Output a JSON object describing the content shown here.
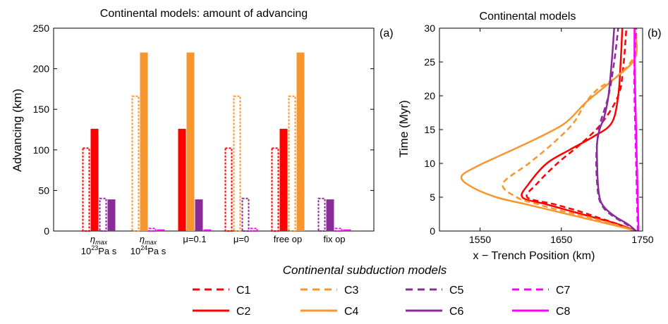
{
  "colors": {
    "C1": "#ff0000",
    "C2": "#ff0000",
    "C3": "#f7962e",
    "C4": "#f7962e",
    "C5": "#8b2b9a",
    "C6": "#8b2b9a",
    "C7": "#ff00ff",
    "C8": "#ff00ff"
  },
  "panel_a": {
    "panel_label": "(a)",
    "chart_data": {
      "type": "bar",
      "title": "Continental models: amount of advancing",
      "ylabel": "Advancing (km)",
      "xlabel": "",
      "ylim": [
        0,
        250
      ],
      "yticks": [
        0,
        50,
        100,
        150,
        200,
        250
      ],
      "groups": [
        {
          "label_lines": [
            {
              "main": "η",
              "sub": "max"
            },
            {
              "main": "10",
              "sup": "23",
              "rest": "Pa s"
            }
          ]
        },
        {
          "label_lines": [
            {
              "main": "η",
              "sub": "max"
            },
            {
              "main": "10",
              "sup": "24",
              "rest": "Pa s"
            }
          ]
        },
        {
          "label_lines": [
            {
              "main": "μ=0.1"
            }
          ]
        },
        {
          "label_lines": [
            {
              "main": "μ=0"
            }
          ]
        },
        {
          "label_lines": [
            {
              "main": "free op"
            }
          ]
        },
        {
          "label_lines": [
            {
              "main": "fix op"
            }
          ]
        }
      ],
      "series": [
        {
          "name": "C1",
          "style": "dashed",
          "values": [
            103,
            null,
            null,
            103,
            103,
            null
          ]
        },
        {
          "name": "C2",
          "style": "solid",
          "values": [
            126,
            null,
            126,
            null,
            126,
            null
          ]
        },
        {
          "name": "C3",
          "style": "dashed",
          "values": [
            null,
            167,
            null,
            167,
            167,
            null
          ]
        },
        {
          "name": "C4",
          "style": "solid",
          "values": [
            null,
            220,
            220,
            null,
            220,
            null
          ]
        },
        {
          "name": "C5",
          "style": "dashed",
          "values": [
            41,
            null,
            null,
            41,
            null,
            41
          ]
        },
        {
          "name": "C6",
          "style": "solid",
          "values": [
            39,
            null,
            39,
            null,
            null,
            39
          ]
        },
        {
          "name": "C7",
          "style": "dashed",
          "values": [
            null,
            4,
            null,
            4,
            null,
            4
          ]
        },
        {
          "name": "C8",
          "style": "solid",
          "values": [
            null,
            2,
            2,
            null,
            null,
            2
          ]
        }
      ]
    }
  },
  "panel_b": {
    "panel_label": "(b)",
    "chart_data": {
      "type": "line",
      "title": "Continental models",
      "xlabel": "x − Trench Position (km)",
      "ylabel": "Time (Myr)",
      "xlim": [
        1500,
        1750
      ],
      "ylim": [
        0,
        30
      ],
      "xticks": [
        1550,
        1650,
        1750
      ],
      "yticks": [
        0,
        5,
        10,
        15,
        20,
        25,
        30
      ],
      "series": [
        {
          "name": "C1",
          "style": "dashed",
          "points": [
            [
              1740,
              0
            ],
            [
              1720,
              1
            ],
            [
              1695,
              2
            ],
            [
              1670,
              3
            ],
            [
              1640,
              4
            ],
            [
              1608,
              5
            ],
            [
              1620,
              7
            ],
            [
              1645,
              10
            ],
            [
              1675,
              13
            ],
            [
              1700,
              16
            ],
            [
              1720,
              20
            ],
            [
              1726,
              24
            ],
            [
              1730,
              30
            ]
          ]
        },
        {
          "name": "C2",
          "style": "solid",
          "points": [
            [
              1742,
              0
            ],
            [
              1720,
              1
            ],
            [
              1690,
              2
            ],
            [
              1660,
              3
            ],
            [
              1630,
              4
            ],
            [
              1602,
              5
            ],
            [
              1610,
              7
            ],
            [
              1632,
              10
            ],
            [
              1660,
              12
            ],
            [
              1690,
              14
            ],
            [
              1712,
              16
            ],
            [
              1720,
              20
            ],
            [
              1723,
              25
            ],
            [
              1725,
              30
            ]
          ]
        },
        {
          "name": "C3",
          "style": "dashed",
          "points": [
            [
              1742,
              0
            ],
            [
              1715,
              1
            ],
            [
              1685,
              2
            ],
            [
              1650,
              3
            ],
            [
              1620,
              4
            ],
            [
              1595,
              5
            ],
            [
              1578,
              7
            ],
            [
              1610,
              10
            ],
            [
              1640,
              13
            ],
            [
              1665,
              16
            ],
            [
              1680,
              19
            ],
            [
              1695,
              21
            ],
            [
              1720,
              23
            ],
            [
              1740,
              26
            ],
            [
              1742,
              30
            ]
          ]
        },
        {
          "name": "C4",
          "style": "solid",
          "points": [
            [
              1743,
              0
            ],
            [
              1710,
              1
            ],
            [
              1675,
              2
            ],
            [
              1640,
              3
            ],
            [
              1605,
              4
            ],
            [
              1570,
              5
            ],
            [
              1540,
              6.5
            ],
            [
              1527,
              8
            ],
            [
              1545,
              9.5
            ],
            [
              1590,
              12
            ],
            [
              1625,
              14
            ],
            [
              1655,
              16
            ],
            [
              1680,
              19
            ],
            [
              1700,
              21
            ],
            [
              1720,
              23
            ],
            [
              1738,
              25
            ],
            [
              1743,
              27
            ],
            [
              1740,
              30
            ]
          ]
        },
        {
          "name": "C5",
          "style": "dashed",
          "points": [
            [
              1742,
              0
            ],
            [
              1730,
              1
            ],
            [
              1716,
              2
            ],
            [
              1705,
              3
            ],
            [
              1699,
              4
            ],
            [
              1696,
              5
            ],
            [
              1694,
              7
            ],
            [
              1693,
              10
            ],
            [
              1694,
              13
            ],
            [
              1698,
              16
            ],
            [
              1708,
              20
            ],
            [
              1715,
              25
            ],
            [
              1720,
              30
            ]
          ]
        },
        {
          "name": "C6",
          "style": "solid",
          "points": [
            [
              1742,
              0
            ],
            [
              1732,
              1
            ],
            [
              1718,
              2
            ],
            [
              1707,
              3
            ],
            [
              1700,
              4
            ],
            [
              1697,
              5
            ],
            [
              1695,
              7
            ],
            [
              1694,
              10
            ],
            [
              1694,
              13
            ],
            [
              1697,
              15
            ],
            [
              1703,
              17
            ],
            [
              1708,
              20
            ],
            [
              1712,
              25
            ],
            [
              1715,
              30
            ]
          ]
        },
        {
          "name": "C7",
          "style": "dashed",
          "points": [
            [
              1744,
              0
            ],
            [
              1743,
              5
            ],
            [
              1742,
              10
            ],
            [
              1741,
              15
            ],
            [
              1740,
              20
            ],
            [
              1740,
              25
            ],
            [
              1742,
              30
            ]
          ]
        },
        {
          "name": "C8",
          "style": "solid",
          "points": [
            [
              1745,
              0
            ],
            [
              1744,
              5
            ],
            [
              1743,
              10
            ],
            [
              1742,
              15
            ],
            [
              1741,
              20
            ],
            [
              1740,
              25
            ],
            [
              1740,
              30
            ]
          ]
        }
      ]
    }
  },
  "legend": {
    "title": "Continental subduction models",
    "entries": [
      {
        "name": "C1",
        "style": "dashed"
      },
      {
        "name": "C3",
        "style": "dashed"
      },
      {
        "name": "C5",
        "style": "dashed"
      },
      {
        "name": "C7",
        "style": "dashed"
      },
      {
        "name": "C2",
        "style": "solid"
      },
      {
        "name": "C4",
        "style": "solid"
      },
      {
        "name": "C6",
        "style": "solid"
      },
      {
        "name": "C8",
        "style": "solid"
      }
    ]
  }
}
